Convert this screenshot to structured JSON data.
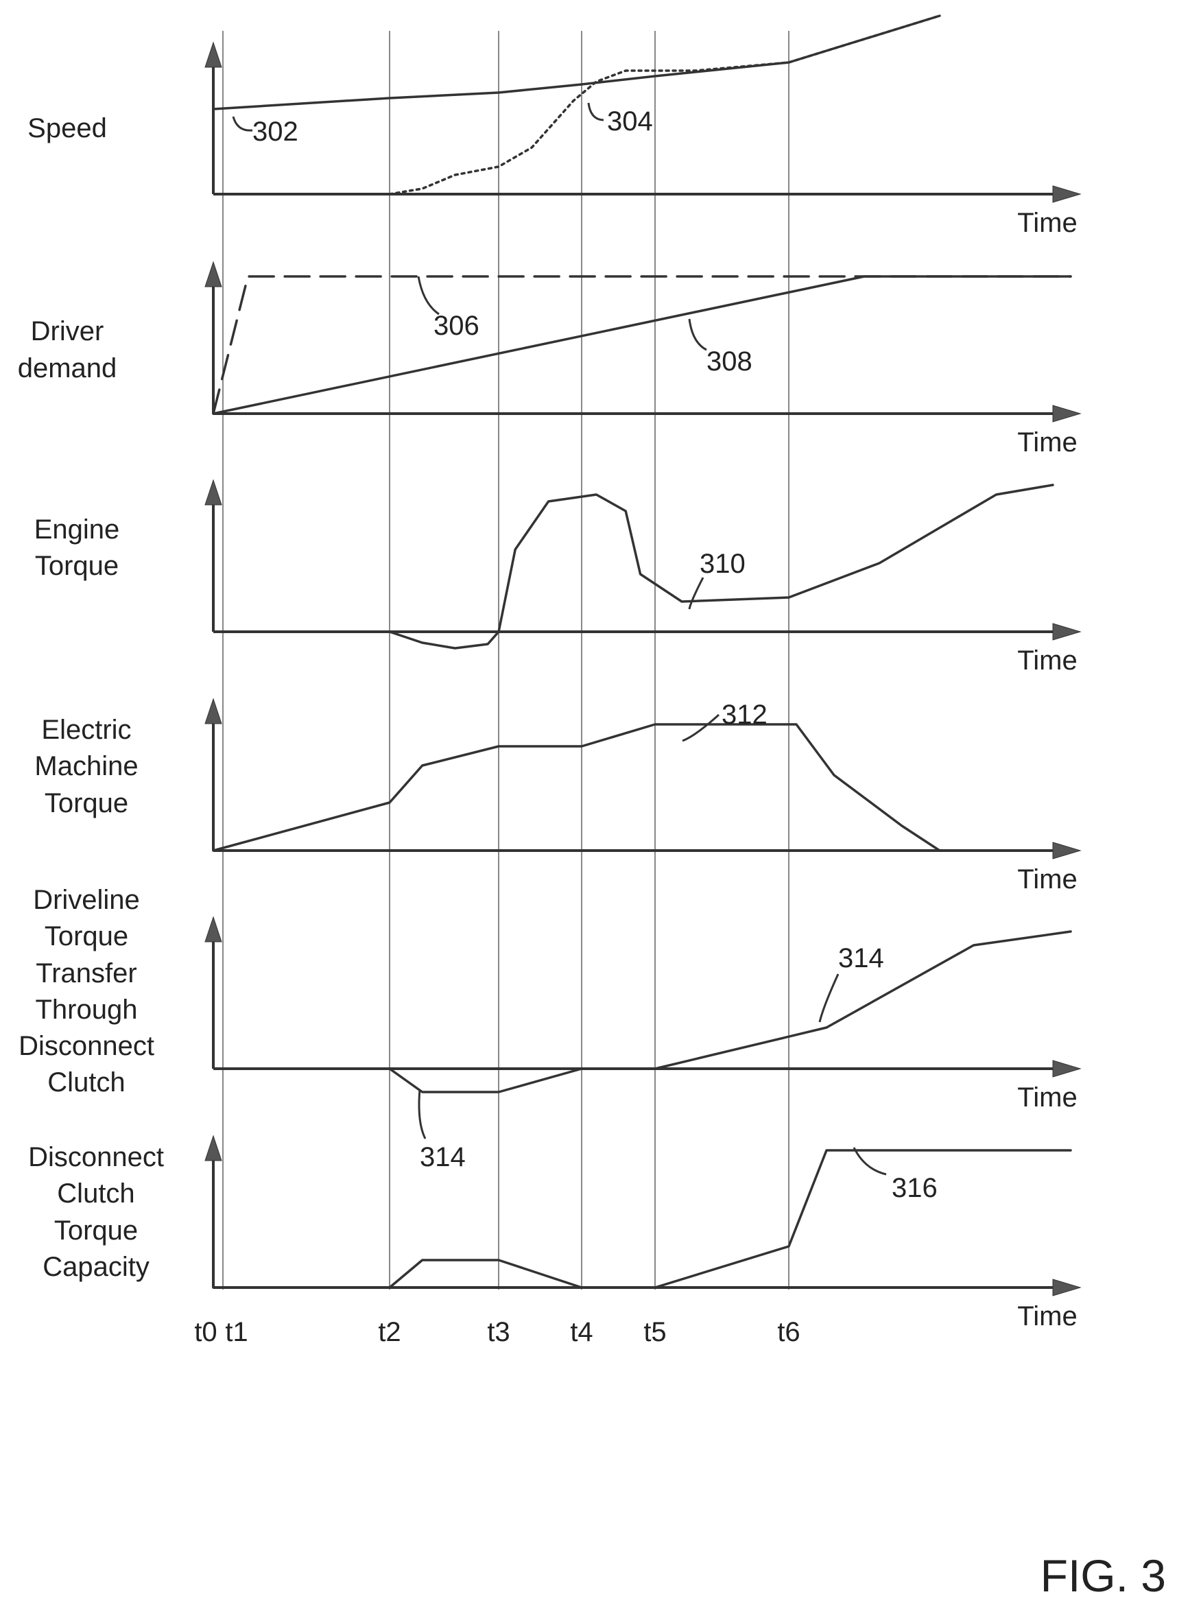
{
  "figure": {
    "label": "FIG. 3"
  },
  "chart_data": {
    "type": "line",
    "events": [
      "t0",
      "t1",
      "t2",
      "t3",
      "t4",
      "t5",
      "t6"
    ],
    "x_axis_label": "Time",
    "panels": [
      {
        "id": "speed",
        "ylabel": [
          "Speed"
        ],
        "series": [
          {
            "ref": "302",
            "style": "solid",
            "points": [
              [
                0,
                0.62
              ],
              [
                2,
                0.7
              ],
              [
                3,
                0.74
              ],
              [
                4,
                0.8
              ],
              [
                5,
                0.86
              ],
              [
                6,
                0.96
              ],
              [
                8,
                1.3
              ]
            ]
          },
          {
            "ref": "304",
            "style": "dotted",
            "points": [
              [
                2,
                0.0
              ],
              [
                2.3,
                0.04
              ],
              [
                2.6,
                0.14
              ],
              [
                3,
                0.2
              ],
              [
                3.4,
                0.34
              ],
              [
                3.9,
                0.68
              ],
              [
                4.2,
                0.82
              ],
              [
                4.6,
                0.9
              ],
              [
                5.3,
                0.9
              ],
              [
                6,
                0.96
              ],
              [
                8,
                1.3
              ]
            ]
          }
        ],
        "annotations": [
          {
            "text": "302"
          },
          {
            "text": "304"
          }
        ]
      },
      {
        "id": "driver-demand",
        "ylabel": [
          "Driver",
          "demand"
        ],
        "series": [
          {
            "ref": "306",
            "style": "dashed",
            "points": [
              [
                0,
                0
              ],
              [
                1.15,
                1.0
              ],
              [
                9.2,
                1.0
              ]
            ]
          },
          {
            "ref": "308",
            "style": "solid",
            "points": [
              [
                0,
                0
              ],
              [
                7.0,
                1.0
              ],
              [
                9.2,
                1.0
              ]
            ]
          }
        ],
        "annotations": [
          {
            "text": "306"
          },
          {
            "text": "308"
          }
        ]
      },
      {
        "id": "engine-torque",
        "ylabel": [
          "Engine",
          "Torque"
        ],
        "series": [
          {
            "ref": "310",
            "style": "solid",
            "points": [
              [
                2,
                0
              ],
              [
                2.3,
                -0.08
              ],
              [
                2.6,
                -0.12
              ],
              [
                2.9,
                -0.09
              ],
              [
                3,
                0
              ],
              [
                3.2,
                0.6
              ],
              [
                3.6,
                0.95
              ],
              [
                4.2,
                1.0
              ],
              [
                4.6,
                0.88
              ],
              [
                4.8,
                0.42
              ],
              [
                5.2,
                0.22
              ],
              [
                6,
                0.25
              ],
              [
                7.2,
                0.5
              ],
              [
                8.5,
                1.0
              ],
              [
                9.0,
                1.07
              ]
            ]
          }
        ],
        "annotations": [
          {
            "text": "310"
          }
        ]
      },
      {
        "id": "electric-machine-torque",
        "ylabel": [
          "Electric",
          "Machine",
          "Torque"
        ],
        "series": [
          {
            "ref": "312",
            "style": "solid",
            "points": [
              [
                0,
                0
              ],
              [
                2,
                0.35
              ],
              [
                2.3,
                0.62
              ],
              [
                3,
                0.76
              ],
              [
                4,
                0.76
              ],
              [
                5,
                0.92
              ],
              [
                6.1,
                0.92
              ],
              [
                6.6,
                0.55
              ],
              [
                7.5,
                0.18
              ],
              [
                8.0,
                0.0
              ]
            ]
          }
        ],
        "annotations": [
          {
            "text": "312"
          }
        ]
      },
      {
        "id": "driveline-torque-transfer",
        "ylabel": [
          "Driveline",
          "Torque",
          "Transfer",
          "Through",
          "Disconnect",
          "Clutch"
        ],
        "series": [
          {
            "ref": "314",
            "style": "solid",
            "points": [
              [
                2,
                0
              ],
              [
                2.3,
                -0.17
              ],
              [
                3,
                -0.17
              ],
              [
                4,
                0
              ],
              [
                5,
                0
              ],
              [
                6.5,
                0.3
              ],
              [
                8.3,
                0.9
              ],
              [
                9.2,
                1.0
              ]
            ]
          }
        ],
        "annotations": [
          {
            "text": "314"
          },
          {
            "text": "314"
          }
        ]
      },
      {
        "id": "clutch-torque-capacity",
        "ylabel": [
          "Disconnect",
          "Clutch",
          "Torque",
          "Capacity"
        ],
        "series": [
          {
            "ref": "316",
            "style": "solid",
            "points": [
              [
                0,
                0
              ],
              [
                2,
                0
              ],
              [
                2.3,
                0.2
              ],
              [
                3,
                0.2
              ],
              [
                4,
                0
              ],
              [
                5,
                0
              ],
              [
                6,
                0.3
              ],
              [
                6.5,
                1.0
              ],
              [
                9.2,
                1.0
              ]
            ]
          }
        ],
        "annotations": [
          {
            "text": "316"
          }
        ]
      }
    ]
  }
}
